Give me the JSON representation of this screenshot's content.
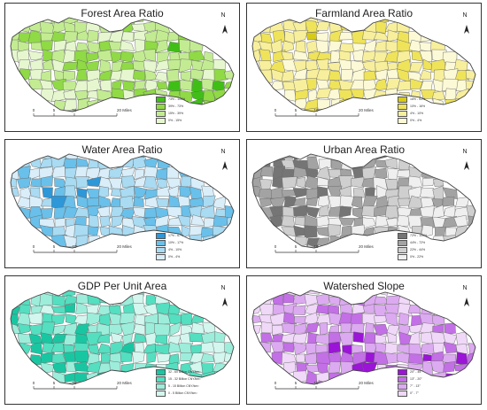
{
  "panels": [
    {
      "title": "Forest Area Ratio",
      "palette": [
        "#e6f7cf",
        "#c3ec92",
        "#8fda45",
        "#3fbf16"
      ],
      "legend": [
        {
          "label": "73% - 100%",
          "color": "#3fbf16"
        },
        {
          "label": "39% - 73%",
          "color": "#8fda45"
        },
        {
          "label": "15% - 39%",
          "color": "#c3ec92"
        },
        {
          "label": "0% - 15%",
          "color": "#e6f7cf"
        }
      ]
    },
    {
      "title": "Farmland Area Ratio",
      "palette": [
        "#fcf9d6",
        "#f7ef9c",
        "#efe35a",
        "#d8cb15"
      ],
      "legend": [
        {
          "label": "16% - 53%",
          "color": "#d8cb15"
        },
        {
          "label": "10% - 16%",
          "color": "#efe35a"
        },
        {
          "label": "4% - 10%",
          "color": "#f7ef9c"
        },
        {
          "label": "0% - 4%",
          "color": "#fcf9d6"
        }
      ]
    },
    {
      "title": "Water Area Ratio",
      "palette": [
        "#d9eef9",
        "#a9dbf2",
        "#69c0ea",
        "#2d97d8"
      ],
      "legend": [
        {
          "label": "17% - 67%",
          "color": "#2d97d8"
        },
        {
          "label": "10% - 17%",
          "color": "#69c0ea"
        },
        {
          "label": "4% - 10%",
          "color": "#a9dbf2"
        },
        {
          "label": "0% - 4%",
          "color": "#d9eef9"
        }
      ]
    },
    {
      "title": "Urban Area Ratio",
      "palette": [
        "#efefef",
        "#cfcfcf",
        "#a3a3a3",
        "#757575"
      ],
      "legend": [
        {
          "label": "72% - 100%",
          "color": "#757575"
        },
        {
          "label": "44% - 72%",
          "color": "#a3a3a3"
        },
        {
          "label": "22% - 44%",
          "color": "#cfcfcf"
        },
        {
          "label": "0% - 22%",
          "color": "#efefef"
        }
      ]
    },
    {
      "title": "GDP Per Unit Area",
      "palette": [
        "#d3f6ee",
        "#9deddb",
        "#53dfc0",
        "#18c7a2"
      ],
      "legend": [
        {
          "label": "32 - 60  Billion CNY/km²",
          "color": "#18c7a2"
        },
        {
          "label": "15 - 32  Billion CNY/km²",
          "color": "#53dfc0"
        },
        {
          "label": "5 - 15  Billion CNY/km²",
          "color": "#9deddb"
        },
        {
          "label": "0 - 5  Billion CNY/km²",
          "color": "#d3f6ee"
        }
      ]
    },
    {
      "title": "Watershed Slope",
      "palette": [
        "#f0d8f8",
        "#dcaaf0",
        "#c36fe6",
        "#9b14d7"
      ],
      "legend": [
        {
          "label": "20° - 45°",
          "color": "#9b14d7"
        },
        {
          "label": "13° - 20°",
          "color": "#c36fe6"
        },
        {
          "label": "7° - 13°",
          "color": "#dcaaf0"
        },
        {
          "label": "0° - 7°",
          "color": "#f0d8f8"
        }
      ]
    }
  ],
  "north_label": "N",
  "scale_ticks": [
    "0",
    "5",
    "10",
    "20 Miles"
  ]
}
